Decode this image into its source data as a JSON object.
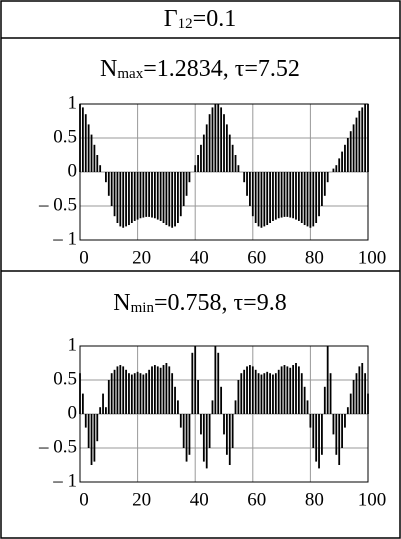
{
  "header": {
    "symbol": "Γ",
    "subscript": "12",
    "text": "=0.1"
  },
  "chart_data": [
    {
      "type": "bar",
      "title": "N",
      "title_subscript": "max",
      "title_suffix": "=1.2834, τ=7.52",
      "color": "#000000",
      "grid": true,
      "xlim": [
        0,
        100
      ],
      "xticks": [
        0,
        20,
        40,
        60,
        80,
        100
      ],
      "ylim": [
        -1,
        1
      ],
      "yticks": [
        1,
        0.5,
        0,
        {
          "value": -0.5,
          "label": "– 0.5"
        },
        {
          "value": -1,
          "label": "– 1"
        }
      ],
      "x": [
        0,
        1,
        2,
        3,
        4,
        5,
        6,
        7,
        8,
        9,
        10,
        11,
        12,
        13,
        14,
        15,
        16,
        17,
        18,
        19,
        20,
        21,
        22,
        23,
        24,
        25,
        26,
        27,
        28,
        29,
        30,
        31,
        32,
        33,
        34,
        35,
        36,
        37,
        38,
        39,
        40,
        41,
        42,
        43,
        44,
        45,
        46,
        47,
        48,
        49,
        50,
        51,
        52,
        53,
        54,
        55,
        56,
        57,
        58,
        59,
        60,
        61,
        62,
        63,
        64,
        65,
        66,
        67,
        68,
        69,
        70,
        71,
        72,
        73,
        74,
        75,
        76,
        77,
        78,
        79,
        80,
        81,
        82,
        83,
        84,
        85,
        86,
        87,
        88,
        89,
        90,
        91,
        92,
        93,
        94,
        95,
        96,
        97,
        98,
        99,
        100
      ],
      "values": [
        1,
        0.95,
        0.85,
        0.7,
        0.55,
        0.4,
        0.25,
        0.1,
        0,
        -0.15,
        -0.35,
        -0.5,
        -0.65,
        -0.75,
        -0.8,
        -0.82,
        -0.8,
        -0.78,
        -0.75,
        -0.72,
        -0.7,
        -0.68,
        -0.67,
        -0.66,
        -0.66,
        -0.67,
        -0.68,
        -0.7,
        -0.72,
        -0.75,
        -0.78,
        -0.8,
        -0.82,
        -0.8,
        -0.75,
        -0.65,
        -0.5,
        -0.35,
        -0.15,
        0,
        0.1,
        0.25,
        0.4,
        0.55,
        0.7,
        0.85,
        0.95,
        1,
        1,
        0.95,
        0.85,
        0.7,
        0.55,
        0.4,
        0.25,
        0.1,
        0,
        -0.15,
        -0.35,
        -0.5,
        -0.65,
        -0.75,
        -0.8,
        -0.82,
        -0.8,
        -0.78,
        -0.75,
        -0.72,
        -0.7,
        -0.68,
        -0.67,
        -0.66,
        -0.66,
        -0.67,
        -0.68,
        -0.7,
        -0.72,
        -0.75,
        -0.78,
        -0.8,
        -0.82,
        -0.8,
        -0.75,
        -0.65,
        -0.5,
        -0.35,
        -0.15,
        0,
        0.05,
        0.1,
        0.2,
        0.3,
        0.4,
        0.5,
        0.6,
        0.7,
        0.8,
        0.9,
        0.95,
        1,
        1
      ]
    },
    {
      "type": "bar",
      "title": "N",
      "title_subscript": "min",
      "title_suffix": "=0.758, τ=9.8",
      "color": "#000000",
      "grid": true,
      "xlim": [
        0,
        100
      ],
      "xticks": [
        0,
        20,
        40,
        60,
        80,
        100
      ],
      "ylim": [
        -1,
        1
      ],
      "yticks": [
        1,
        0.5,
        0,
        {
          "value": -0.5,
          "label": "– 0.5"
        },
        {
          "value": -1,
          "label": "– 1"
        }
      ],
      "x": [
        0,
        1,
        2,
        3,
        4,
        5,
        6,
        7,
        8,
        9,
        10,
        11,
        12,
        13,
        14,
        15,
        16,
        17,
        18,
        19,
        20,
        21,
        22,
        23,
        24,
        25,
        26,
        27,
        28,
        29,
        30,
        31,
        32,
        33,
        34,
        35,
        36,
        37,
        38,
        39,
        40,
        41,
        42,
        43,
        44,
        45,
        46,
        47,
        48,
        49,
        50,
        51,
        52,
        53,
        54,
        55,
        56,
        57,
        58,
        59,
        60,
        61,
        62,
        63,
        64,
        65,
        66,
        67,
        68,
        69,
        70,
        71,
        72,
        73,
        74,
        75,
        76,
        77,
        78,
        79,
        80,
        81,
        82,
        83,
        84,
        85,
        86,
        87,
        88,
        89,
        90,
        91,
        92,
        93,
        94,
        95,
        96,
        97,
        98,
        99,
        100
      ],
      "values": [
        0.6,
        0.3,
        -0.2,
        -0.5,
        -0.75,
        -0.7,
        -0.4,
        0.1,
        0.3,
        0.1,
        0.5,
        0.6,
        0.65,
        0.7,
        0.72,
        0.7,
        0.65,
        0.6,
        0.58,
        0.6,
        0.62,
        0.6,
        0.58,
        0.6,
        0.65,
        0.7,
        0.72,
        0.7,
        0.68,
        0.72,
        0.75,
        0.7,
        0.6,
        0.4,
        0.2,
        -0.2,
        -0.5,
        -0.7,
        -0.6,
        0.9,
        1,
        0.5,
        -0.3,
        -0.7,
        -0.8,
        -0.5,
        0.2,
        1,
        0.9,
        0.4,
        -0.3,
        -0.6,
        -0.75,
        -0.5,
        0.2,
        0.5,
        0.6,
        0.65,
        0.7,
        0.72,
        0.7,
        0.65,
        0.6,
        0.58,
        0.6,
        0.62,
        0.6,
        0.58,
        0.6,
        0.65,
        0.7,
        0.72,
        0.7,
        0.68,
        0.72,
        0.75,
        0.7,
        0.6,
        0.4,
        0.2,
        -0.2,
        -0.5,
        -0.7,
        -0.8,
        -0.6,
        0.4,
        1,
        0.6,
        -0.3,
        -0.6,
        -0.75,
        -0.5,
        -0.2,
        0.1,
        0.3,
        0.5,
        0.6,
        0.7,
        0.75,
        0.6,
        0.3
      ]
    }
  ]
}
